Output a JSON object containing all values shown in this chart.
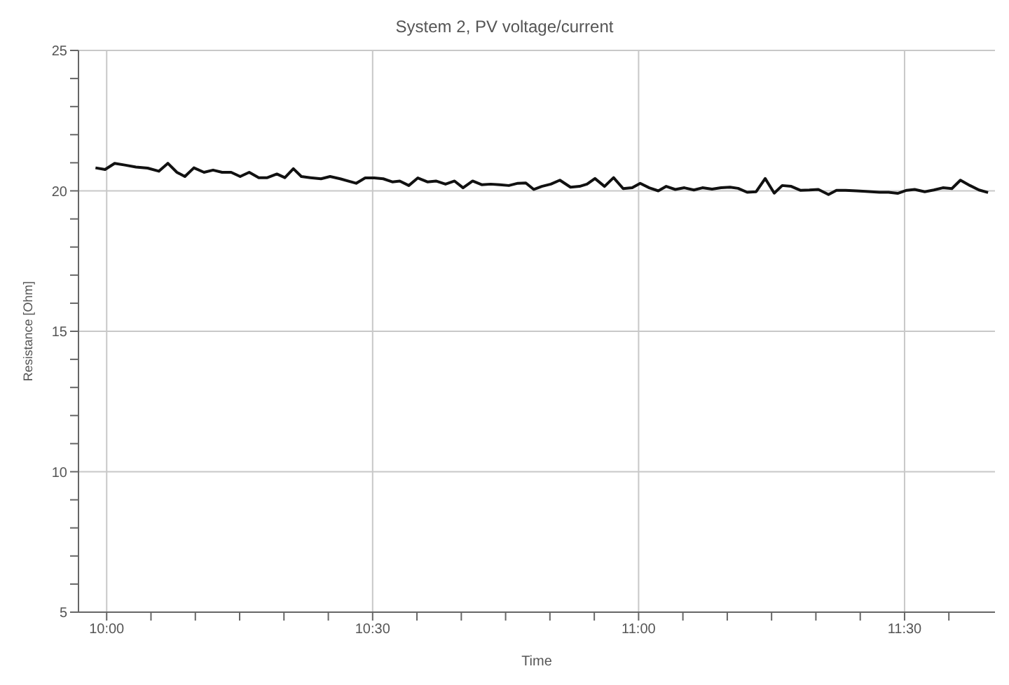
{
  "chart_data": {
    "type": "line",
    "title": "System 2, PV voltage/current",
    "xlabel": "Time",
    "ylabel": "Resistance [Ohm]",
    "xlim": [
      9.947,
      11.67
    ],
    "xticks": [
      {
        "value": 10,
        "label": "10:00"
      },
      {
        "value": 10.0833,
        "label": null
      },
      {
        "value": 10.1667,
        "label": null
      },
      {
        "value": 10.25,
        "label": null
      },
      {
        "value": 10.3333,
        "label": null
      },
      {
        "value": 10.4167,
        "label": null
      },
      {
        "value": 10.5,
        "label": "10:30"
      },
      {
        "value": 10.5833,
        "label": null
      },
      {
        "value": 10.6667,
        "label": null
      },
      {
        "value": 10.75,
        "label": null
      },
      {
        "value": 10.8333,
        "label": null
      },
      {
        "value": 10.9167,
        "label": null
      },
      {
        "value": 11,
        "label": "11:00"
      },
      {
        "value": 11.0833,
        "label": null
      },
      {
        "value": 11.1667,
        "label": null
      },
      {
        "value": 11.25,
        "label": null
      },
      {
        "value": 11.3333,
        "label": null
      },
      {
        "value": 11.4167,
        "label": null
      },
      {
        "value": 11.5,
        "label": "11:30"
      },
      {
        "value": 11.5833,
        "label": null
      }
    ],
    "ylim": [
      5,
      25
    ],
    "yticks": [
      5,
      {
        "value": 6,
        "label": null
      },
      {
        "value": 7,
        "label": null
      },
      {
        "value": 8,
        "label": null
      },
      {
        "value": 9,
        "label": null
      },
      10,
      {
        "value": 11,
        "label": null
      },
      {
        "value": 12,
        "label": null
      },
      {
        "value": 13,
        "label": null
      },
      {
        "value": 14,
        "label": null
      },
      15,
      {
        "value": 16,
        "label": null
      },
      {
        "value": 17,
        "label": null
      },
      {
        "value": 18,
        "label": null
      },
      {
        "value": 19,
        "label": null
      },
      20,
      {
        "value": 21,
        "label": null
      },
      {
        "value": 22,
        "label": null
      },
      {
        "value": 23,
        "label": null
      },
      {
        "value": 24,
        "label": null
      },
      25
    ],
    "grid": true,
    "line_style": "solid",
    "marker": "none",
    "x": [
      9.979,
      9.997,
      10.015,
      10.034,
      10.055,
      10.077,
      10.098,
      10.115,
      10.132,
      10.147,
      10.164,
      10.183,
      10.2,
      10.217,
      10.234,
      10.251,
      10.268,
      10.286,
      10.302,
      10.32,
      10.335,
      10.351,
      10.366,
      10.383,
      10.403,
      10.42,
      10.439,
      10.469,
      10.486,
      10.503,
      10.52,
      10.537,
      10.551,
      10.568,
      10.585,
      10.603,
      10.619,
      10.637,
      10.654,
      10.67,
      10.688,
      10.705,
      10.722,
      10.739,
      10.756,
      10.773,
      10.788,
      10.803,
      10.818,
      10.835,
      10.852,
      10.872,
      10.889,
      10.903,
      10.918,
      10.936,
      10.953,
      10.971,
      10.988,
      11.003,
      11.02,
      11.037,
      11.052,
      11.069,
      11.086,
      11.104,
      11.12,
      11.138,
      11.155,
      11.172,
      11.187,
      11.204,
      11.221,
      11.238,
      11.255,
      11.27,
      11.287,
      11.304,
      11.321,
      11.338,
      11.357,
      11.372,
      11.389,
      11.41,
      11.427,
      11.453,
      11.47,
      11.487,
      11.504,
      11.519,
      11.538,
      11.555,
      11.572,
      11.589,
      11.605,
      11.623,
      11.64,
      11.657
    ],
    "series": [
      {
        "color": "#111111",
        "values": [
          20.82,
          20.76,
          20.98,
          20.92,
          20.85,
          20.81,
          20.7,
          20.98,
          20.66,
          20.51,
          20.82,
          20.66,
          20.74,
          20.66,
          20.66,
          20.51,
          20.66,
          20.47,
          20.47,
          20.6,
          20.47,
          20.79,
          20.51,
          20.47,
          20.43,
          20.51,
          20.43,
          20.27,
          20.46,
          20.46,
          20.43,
          20.32,
          20.35,
          20.19,
          20.46,
          20.32,
          20.35,
          20.24,
          20.35,
          20.11,
          20.35,
          20.22,
          20.24,
          20.22,
          20.19,
          20.27,
          20.28,
          20.05,
          20.16,
          20.24,
          20.38,
          20.13,
          20.16,
          20.24,
          20.44,
          20.16,
          20.47,
          20.08,
          20.11,
          20.27,
          20.11,
          20.0,
          20.16,
          20.05,
          20.11,
          20.03,
          20.11,
          20.06,
          20.11,
          20.13,
          20.09,
          19.95,
          19.97,
          20.44,
          19.92,
          20.19,
          20.16,
          20.02,
          20.03,
          20.05,
          19.87,
          20.02,
          20.02,
          20.0,
          19.98,
          19.95,
          19.95,
          19.91,
          20.02,
          20.05,
          19.97,
          20.03,
          20.11,
          20.08,
          20.38,
          20.19,
          20.03,
          19.94
        ]
      }
    ]
  }
}
